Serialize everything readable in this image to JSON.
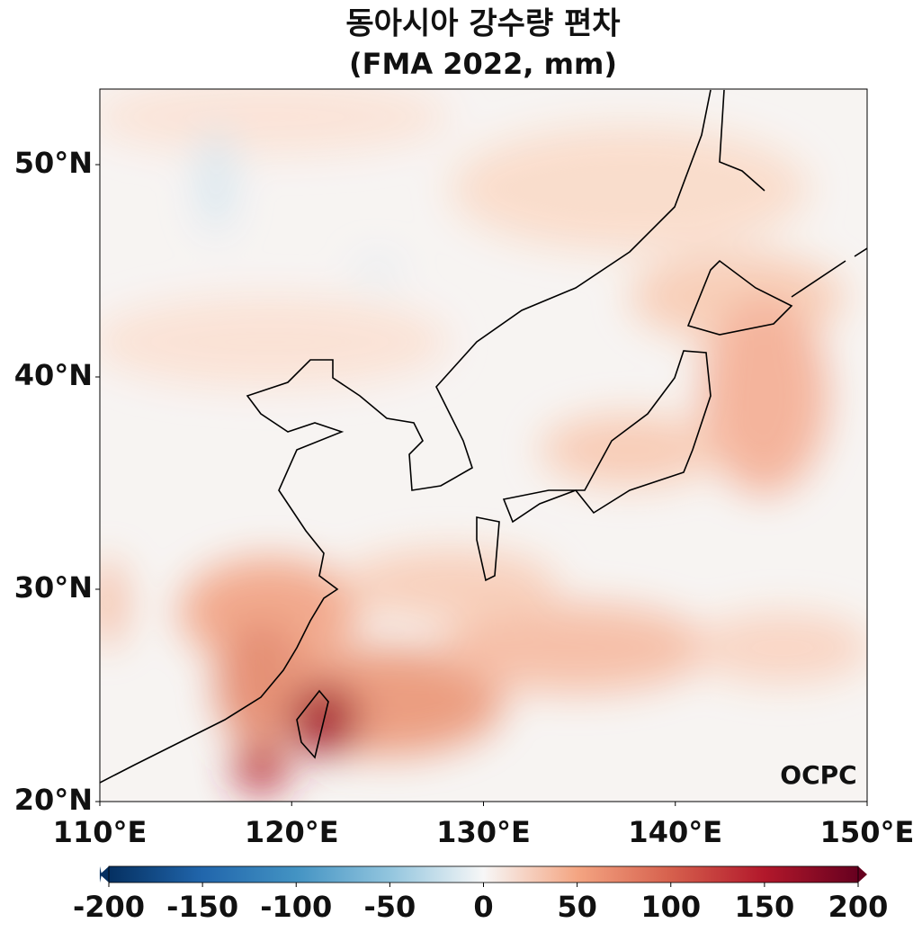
{
  "title": "동아시아 강수량 편차",
  "subtitle": "(FMA 2022, mm)",
  "map": {
    "lon_range": [
      110,
      150
    ],
    "lat_range": [
      20,
      53.56
    ],
    "xticks": [
      {
        "value": 110,
        "label": "110°E"
      },
      {
        "value": 120,
        "label": "120°E"
      },
      {
        "value": 130,
        "label": "130°E"
      },
      {
        "value": 140,
        "label": "140°E"
      },
      {
        "value": 150,
        "label": "150°E"
      }
    ],
    "yticks": [
      {
        "value": 20,
        "label": "20°N"
      },
      {
        "value": 30,
        "label": "30°N"
      },
      {
        "value": 40,
        "label": "40°N"
      },
      {
        "value": 50,
        "label": "50°N"
      }
    ]
  },
  "colorbar": {
    "lim": [
      -200,
      200
    ],
    "ticks": [
      -200,
      -150,
      -100,
      -50,
      0,
      50,
      100,
      150,
      200
    ],
    "colormap": "RdBu_r"
  },
  "logo": "OCPC"
}
